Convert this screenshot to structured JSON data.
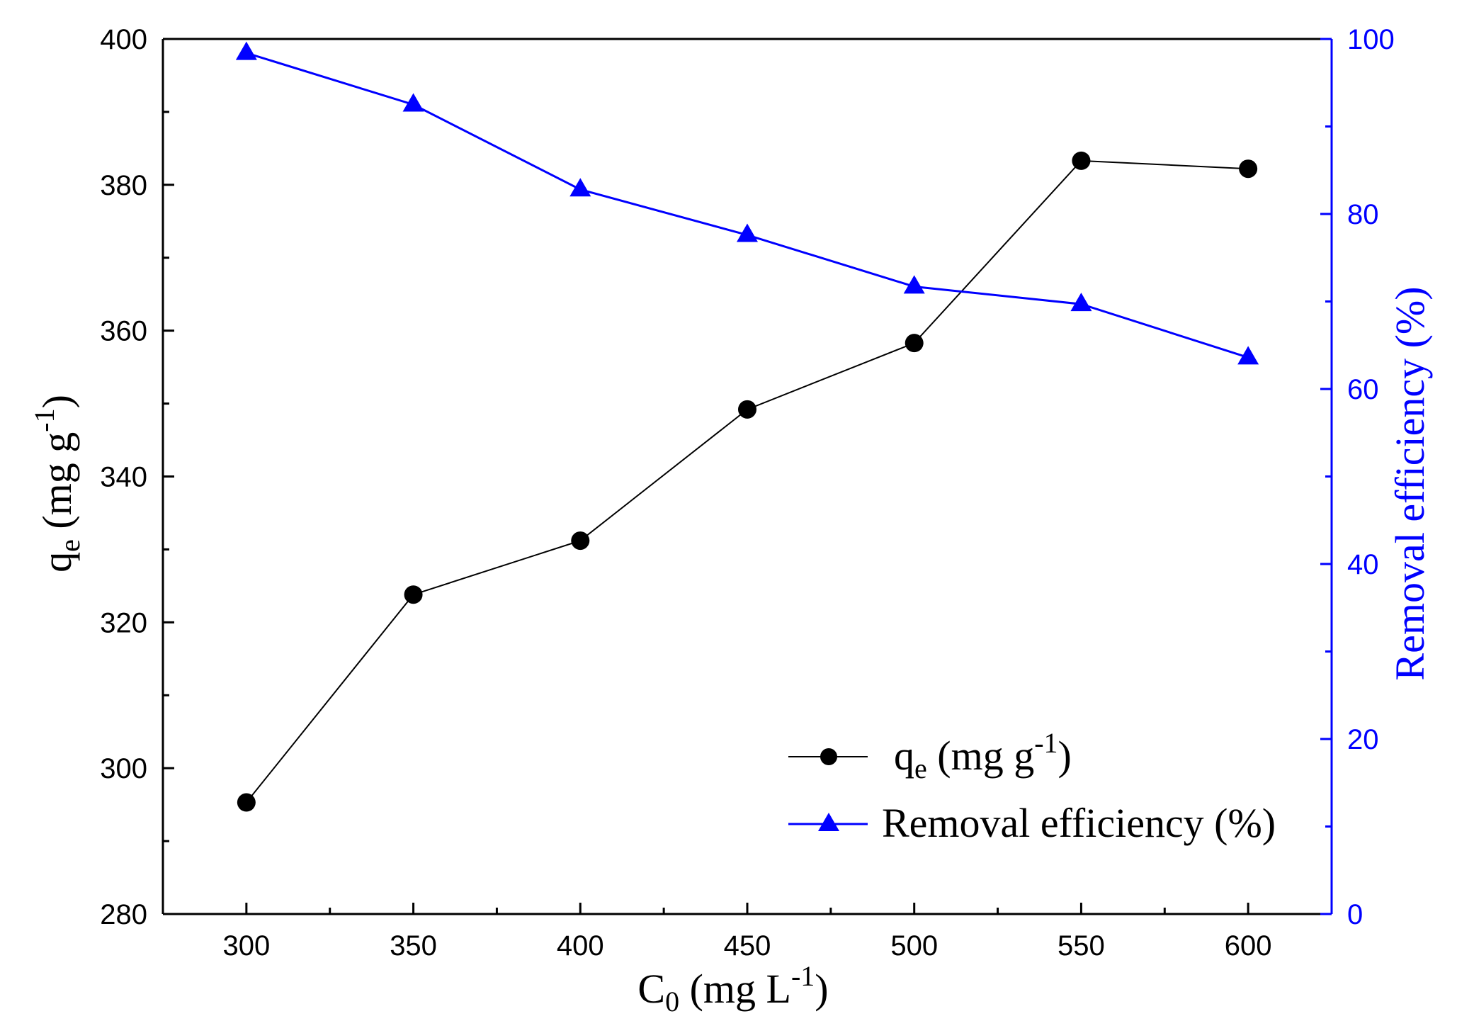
{
  "chart_data": {
    "type": "line",
    "title": "",
    "xlabel": {
      "main": "C",
      "sub": "0",
      "unit_open": " (mg L",
      "sup": "-1",
      "unit_close": ")"
    },
    "ylabel_left": {
      "main": "q",
      "sub": "e",
      "unit_open": " (mg g",
      "sup": "-1",
      "unit_close": ")"
    },
    "ylabel_right": "Removal efficiency (%)",
    "x": [
      300,
      350,
      400,
      450,
      500,
      550,
      600
    ],
    "xlim": [
      275,
      625
    ],
    "ylim_left": [
      280,
      400
    ],
    "ylim_right": [
      0,
      100
    ],
    "x_ticks": [
      "300",
      "350",
      "400",
      "450",
      "500",
      "550",
      "600"
    ],
    "y_left_ticks": [
      "280",
      "300",
      "320",
      "340",
      "360",
      "380",
      "400"
    ],
    "y_right_ticks": [
      "0",
      "20",
      "40",
      "60",
      "80",
      "100"
    ],
    "series": [
      {
        "name": "q_e (mg g-1)",
        "axis": "left",
        "marker": "circle",
        "color": "#000000",
        "values": [
          295.3,
          323.8,
          331.2,
          349.2,
          358.3,
          383.3,
          382.2
        ],
        "legend": {
          "main": "q",
          "sub": "e",
          "unit_open": " (mg g",
          "sup": "-1",
          "unit_close": ")"
        }
      },
      {
        "name": "Removal efficiency (%)",
        "axis": "right",
        "marker": "triangle",
        "color": "#0000ff",
        "values": [
          98.4,
          92.5,
          82.8,
          77.6,
          71.7,
          69.7,
          63.6
        ],
        "legend": {
          "main": "Removal efficiency (%)"
        }
      }
    ],
    "legend_position": "bottom-right"
  }
}
